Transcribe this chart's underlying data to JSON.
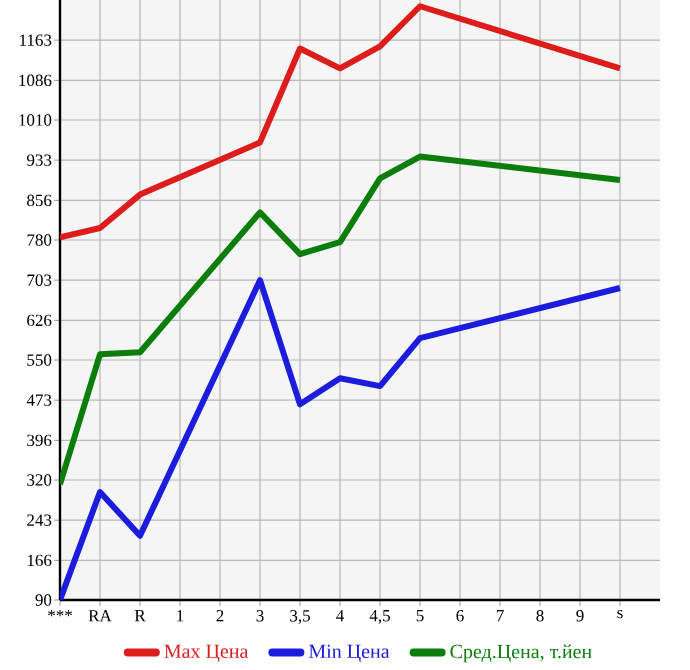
{
  "chart_data": {
    "type": "line",
    "categories": [
      "***",
      "RA",
      "R",
      "1",
      "2",
      "3",
      "3,5",
      "4",
      "4,5",
      "5",
      "6",
      "7",
      "8",
      "9",
      "s"
    ],
    "ylim": [
      90,
      1240
    ],
    "yticks": [
      90,
      166,
      243,
      320,
      396,
      473,
      550,
      626,
      703,
      780,
      856,
      933,
      1010,
      1086,
      1163
    ],
    "grid": true,
    "legend": "bottom",
    "marker": "none",
    "line_style": "solid",
    "series": [
      {
        "name": "Max Цена",
        "color": "#dd1c1c",
        "values": [
          785,
          803,
          867,
          null,
          null,
          967,
          1147,
          1109,
          1151,
          1228,
          null,
          null,
          null,
          null,
          1109
        ]
      },
      {
        "name": "Min Цена",
        "color": "#1c1cdd",
        "values": [
          90,
          297,
          213,
          null,
          null,
          703,
          465,
          515,
          500,
          592,
          null,
          null,
          null,
          null,
          688
        ]
      },
      {
        "name": "Сред.Цена, т.йен",
        "color": "#0a7d0a",
        "values": [
          312,
          561,
          565,
          null,
          null,
          833,
          753,
          776,
          898,
          940,
          null,
          null,
          null,
          null,
          895
        ]
      }
    ]
  }
}
